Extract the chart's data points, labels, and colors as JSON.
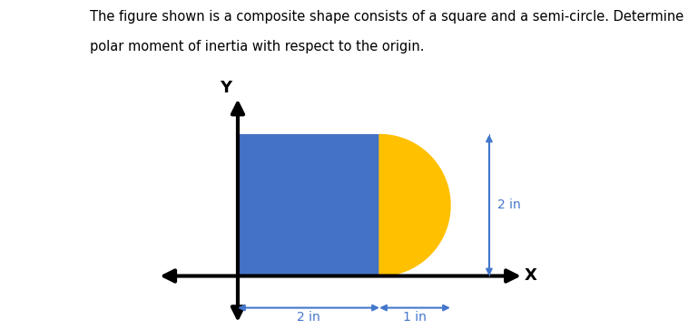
{
  "title_line1": "The figure shown is a composite shape consists of a square and a semi-circle. Determine the",
  "title_line2": "polar moment of inertia with respect to the origin.",
  "title_fontsize": 10.5,
  "square_color": "#4472C4",
  "semicircle_color": "#FFC000",
  "axis_color": "black",
  "dim_color": "#4477CC",
  "x_label": "X",
  "y_label": "Y",
  "dim1_label": "2 in",
  "dim2_label": "1 in",
  "dim3_label": "2 in",
  "figsize": [
    7.58,
    3.63
  ],
  "dpi": 100,
  "xlim": [
    -1.2,
    4.2
  ],
  "ylim": [
    -0.75,
    2.6
  ]
}
